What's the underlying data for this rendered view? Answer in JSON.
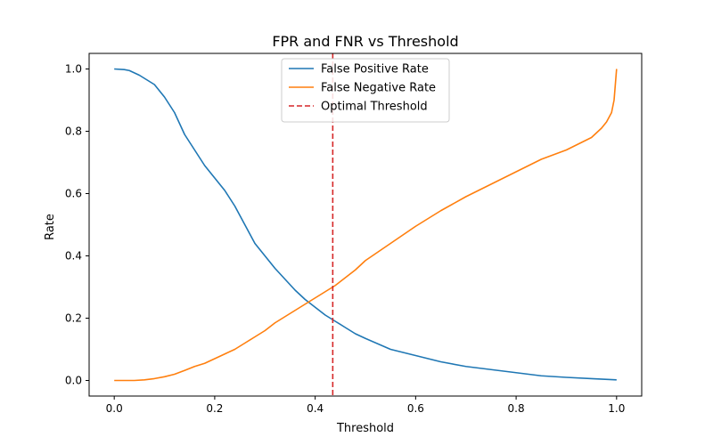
{
  "chart_data": {
    "type": "line",
    "title": "FPR and FNR vs Threshold",
    "xlabel": "Threshold",
    "ylabel": "Rate",
    "xlim": [
      -0.05,
      1.05
    ],
    "ylim": [
      -0.05,
      1.05
    ],
    "xticks": [
      0.0,
      0.2,
      0.4,
      0.6,
      0.8,
      1.0
    ],
    "xtick_labels": [
      "0.0",
      "0.2",
      "0.4",
      "0.6",
      "0.8",
      "1.0"
    ],
    "yticks": [
      0.0,
      0.2,
      0.4,
      0.6,
      0.8,
      1.0
    ],
    "ytick_labels": [
      "0.0",
      "0.2",
      "0.4",
      "0.6",
      "0.8",
      "1.0"
    ],
    "grid": false,
    "legend_position": "top-center",
    "series": [
      {
        "name": "False Positive Rate",
        "color": "#1f77b4",
        "style": "solid",
        "x": [
          0.0,
          0.02,
          0.03,
          0.05,
          0.08,
          0.1,
          0.12,
          0.14,
          0.16,
          0.18,
          0.2,
          0.22,
          0.24,
          0.26,
          0.28,
          0.3,
          0.32,
          0.34,
          0.36,
          0.38,
          0.4,
          0.42,
          0.44,
          0.46,
          0.48,
          0.5,
          0.55,
          0.6,
          0.65,
          0.7,
          0.75,
          0.8,
          0.85,
          0.9,
          0.95,
          1.0
        ],
        "y": [
          1.0,
          0.998,
          0.995,
          0.98,
          0.95,
          0.91,
          0.86,
          0.79,
          0.74,
          0.69,
          0.65,
          0.61,
          0.56,
          0.5,
          0.44,
          0.4,
          0.36,
          0.325,
          0.29,
          0.26,
          0.235,
          0.21,
          0.19,
          0.17,
          0.15,
          0.135,
          0.1,
          0.08,
          0.06,
          0.045,
          0.035,
          0.025,
          0.015,
          0.01,
          0.006,
          0.002
        ]
      },
      {
        "name": "False Negative Rate",
        "color": "#ff7f0e",
        "style": "solid",
        "x": [
          0.0,
          0.02,
          0.04,
          0.06,
          0.08,
          0.1,
          0.12,
          0.14,
          0.16,
          0.18,
          0.2,
          0.22,
          0.24,
          0.26,
          0.28,
          0.3,
          0.32,
          0.34,
          0.36,
          0.38,
          0.4,
          0.42,
          0.44,
          0.46,
          0.48,
          0.5,
          0.55,
          0.6,
          0.65,
          0.7,
          0.75,
          0.8,
          0.85,
          0.9,
          0.95,
          0.97,
          0.98,
          0.99,
          0.995,
          1.0
        ],
        "y": [
          0.0,
          0.0,
          0.0,
          0.002,
          0.006,
          0.012,
          0.02,
          0.032,
          0.045,
          0.055,
          0.07,
          0.085,
          0.1,
          0.12,
          0.14,
          0.16,
          0.185,
          0.205,
          0.225,
          0.245,
          0.265,
          0.285,
          0.305,
          0.33,
          0.355,
          0.385,
          0.44,
          0.495,
          0.545,
          0.59,
          0.63,
          0.67,
          0.71,
          0.74,
          0.78,
          0.81,
          0.83,
          0.86,
          0.9,
          1.0
        ]
      }
    ],
    "vlines": [
      {
        "name": "Optimal Threshold",
        "x": 0.435,
        "color": "#d62728",
        "style": "dashed"
      }
    ]
  }
}
